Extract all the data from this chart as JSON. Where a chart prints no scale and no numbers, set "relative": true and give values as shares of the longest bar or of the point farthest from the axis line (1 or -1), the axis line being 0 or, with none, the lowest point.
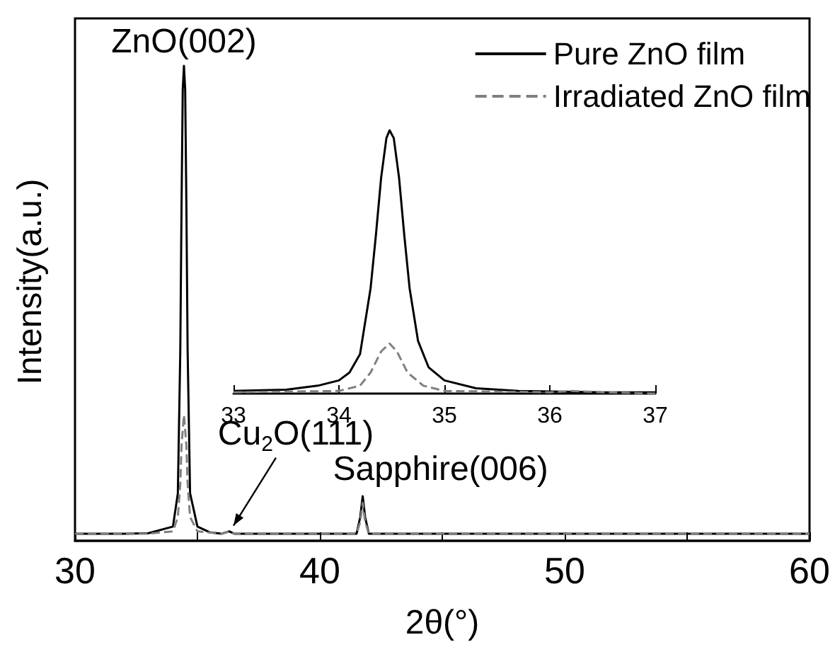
{
  "chart_data": [
    {
      "type": "line",
      "relative": true,
      "xlabel": "2θ(°)",
      "ylabel": "Intensity(a.u.)",
      "xlim": [
        30,
        60
      ],
      "xticks": [
        30,
        {
          "value": 35,
          "label": null
        },
        40,
        {
          "value": 45,
          "label": null
        },
        50,
        {
          "value": 55,
          "label": null
        },
        60
      ],
      "legend": "top right",
      "marker": "none",
      "grid": false,
      "annotations": [
        {
          "text": "ZnO(002)",
          "x": 34.45,
          "y": 1
        },
        {
          "text": "Cu$_{2}$O(111)",
          "x": 36.3,
          "y": 0.02
        },
        {
          "text": "Sapphire(006)",
          "x": 41.75,
          "y": 0.094
        }
      ],
      "series": [
        {
          "name": "Pure ZnO film",
          "color": "#000000",
          "line_style": "solid",
          "x": [
            30,
            32,
            33,
            34,
            34.2,
            34.3,
            34.35,
            34.4,
            34.45,
            34.5,
            34.55,
            34.6,
            34.7,
            35,
            35.5,
            36,
            36.3,
            36.5,
            38,
            40,
            41.5,
            41.65,
            41.75,
            41.85,
            42,
            45,
            50,
            55,
            60
          ],
          "values": [
            0.015,
            0.015,
            0.016,
            0.03,
            0.1,
            0.4,
            0.7,
            0.95,
            1,
            0.95,
            0.7,
            0.4,
            0.1,
            0.03,
            0.018,
            0.015,
            0.02,
            0.015,
            0.015,
            0.015,
            0.015,
            0.05,
            0.094,
            0.05,
            0.015,
            0.015,
            0.015,
            0.015,
            0.015
          ]
        },
        {
          "name": "Irradiated ZnO film",
          "color": "#808080",
          "line_style": "dashed",
          "x": [
            30,
            33,
            34,
            34.2,
            34.3,
            34.35,
            34.45,
            34.55,
            34.6,
            34.7,
            35,
            36,
            36.3,
            36.5,
            40,
            41.5,
            41.65,
            41.75,
            41.85,
            42,
            50,
            60
          ],
          "values": [
            0.015,
            0.015,
            0.02,
            0.05,
            0.12,
            0.2,
            0.265,
            0.2,
            0.12,
            0.05,
            0.02,
            0.015,
            0.02,
            0.015,
            0.015,
            0.015,
            0.04,
            0.08,
            0.04,
            0.015,
            0.015,
            0.015
          ]
        }
      ]
    },
    {
      "type": "line",
      "relative": true,
      "xlim": [
        33,
        37
      ],
      "xticks": [
        33,
        34,
        35,
        36,
        37
      ],
      "marker": "none",
      "grid": false,
      "series": [
        {
          "color": "#000000",
          "line_style": "solid",
          "x": [
            33,
            33.5,
            33.8,
            34,
            34.1,
            34.2,
            34.3,
            34.35,
            34.4,
            34.45,
            34.48,
            34.52,
            34.57,
            34.62,
            34.67,
            34.75,
            34.85,
            35,
            35.3,
            35.7,
            36.5,
            37
          ],
          "values": [
            0.01,
            0.015,
            0.03,
            0.05,
            0.08,
            0.15,
            0.4,
            0.6,
            0.82,
            0.97,
            1,
            0.97,
            0.82,
            0.6,
            0.4,
            0.2,
            0.1,
            0.05,
            0.02,
            0.01,
            0.005,
            0.005
          ]
        },
        {
          "color": "#808080",
          "line_style": "dashed",
          "x": [
            33,
            34,
            34.2,
            34.3,
            34.4,
            34.48,
            34.55,
            34.65,
            34.8,
            35,
            36,
            36.2,
            36.5,
            37
          ],
          "values": [
            0.005,
            0.01,
            0.03,
            0.08,
            0.16,
            0.19,
            0.16,
            0.08,
            0.03,
            0.01,
            0.005,
            0.01,
            0.005,
            0
          ]
        }
      ]
    }
  ]
}
